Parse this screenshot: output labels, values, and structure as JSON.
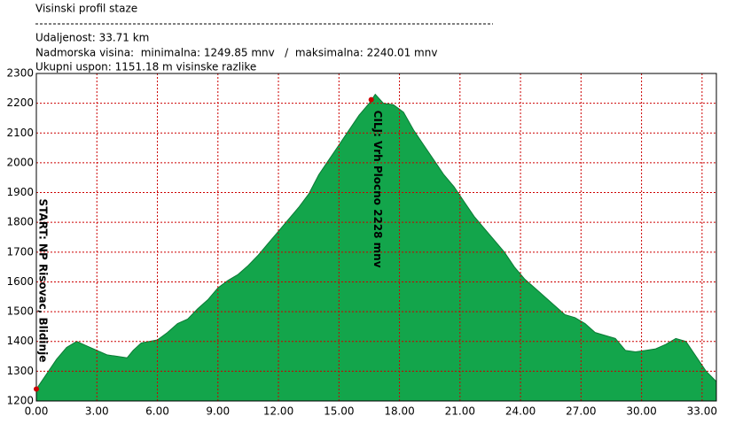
{
  "header": {
    "title": "Visinski profil staze",
    "distance": "Udaljenost: 33.71 km",
    "altitude": "Nadmorska visina:  minimalna: 1249.85 mnv   /  maksimalna: 2240.01 mnv",
    "ascent": "Ukupni uspon: 1151.18 m visinske razlike"
  },
  "chart_data": {
    "type": "area",
    "color": "#13a54b",
    "grid": true,
    "grid_color": "#cc0000",
    "x": [
      0,
      0.5,
      1.0,
      1.5,
      2.0,
      2.5,
      3.0,
      3.5,
      4.0,
      4.5,
      4.8,
      5.2,
      6.0,
      6.5,
      7.0,
      7.5,
      8.0,
      8.5,
      9.0,
      9.5,
      10.0,
      10.5,
      11.0,
      11.5,
      12.0,
      12.5,
      13.0,
      13.5,
      14.0,
      14.5,
      15.0,
      15.5,
      16.0,
      16.5,
      16.8,
      17.2,
      17.7,
      18.2,
      18.7,
      19.2,
      19.7,
      20.2,
      20.7,
      21.2,
      21.7,
      22.2,
      22.7,
      23.2,
      23.7,
      24.2,
      24.7,
      25.2,
      25.7,
      26.2,
      26.7,
      27.2,
      27.7,
      28.2,
      28.7,
      29.2,
      29.7,
      30.2,
      30.7,
      31.2,
      31.7,
      32.2,
      32.7,
      33.2,
      33.71
    ],
    "values": [
      1240,
      1290,
      1340,
      1380,
      1400,
      1385,
      1370,
      1355,
      1350,
      1345,
      1370,
      1395,
      1405,
      1430,
      1460,
      1475,
      1510,
      1540,
      1580,
      1605,
      1625,
      1655,
      1690,
      1730,
      1770,
      1810,
      1850,
      1895,
      1960,
      2010,
      2060,
      2110,
      2160,
      2200,
      2230,
      2200,
      2195,
      2170,
      2110,
      2060,
      2010,
      1960,
      1920,
      1870,
      1820,
      1780,
      1740,
      1700,
      1650,
      1610,
      1580,
      1550,
      1520,
      1490,
      1480,
      1460,
      1430,
      1420,
      1410,
      1370,
      1365,
      1370,
      1375,
      1390,
      1410,
      1400,
      1350,
      1300,
      1265
    ],
    "xlim": [
      0,
      33.71
    ],
    "ylim": [
      1200,
      2300
    ],
    "xticks": [
      {
        "value": 0,
        "label": "0.00"
      },
      {
        "value": 3,
        "label": "3.00"
      },
      {
        "value": 6,
        "label": "6.00"
      },
      {
        "value": 9,
        "label": "9.00"
      },
      {
        "value": 12,
        "label": "12.00"
      },
      {
        "value": 15,
        "label": "15.00"
      },
      {
        "value": 18,
        "label": "18.00"
      },
      {
        "value": 21,
        "label": "21.00"
      },
      {
        "value": 24,
        "label": "24.00"
      },
      {
        "value": 27,
        "label": "27.00"
      },
      {
        "value": 30,
        "label": "30.00"
      },
      {
        "value": 33,
        "label": "33.00"
      }
    ],
    "yticks": [
      1200,
      1300,
      1400,
      1500,
      1600,
      1700,
      1800,
      1900,
      2000,
      2100,
      2200,
      2300
    ],
    "markers": [
      {
        "label": "START: NP Risovac, Blidinje",
        "x": 0,
        "y": 1240
      },
      {
        "label": "CILJ: Vrh Plocno 2228 mnv",
        "x": 16.6,
        "y": 2212
      }
    ],
    "marker_color": "#cc0000"
  }
}
